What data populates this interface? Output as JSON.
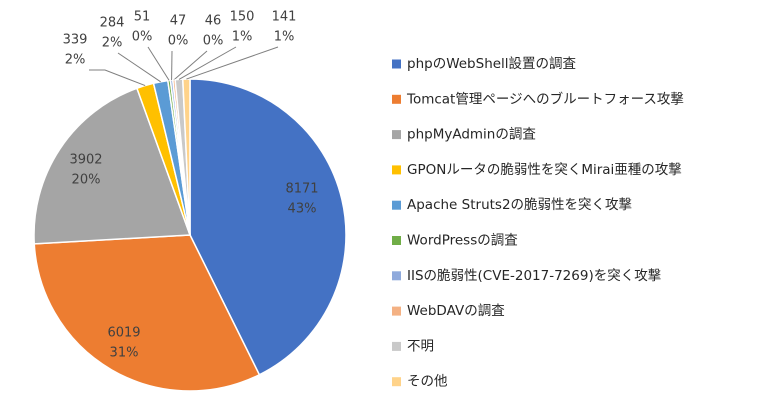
{
  "chart_data": {
    "type": "pie",
    "categories": [
      "phpのWebShell設置の調査",
      "Tomcat管理ページへのブルートフォース攻撃",
      "phpMyAdminの調査",
      "GPONルータの脆弱性を突くMirai亜種の攻撃",
      "Apache Struts2の脆弱性を突く攻撃",
      "WordPressの調査",
      "IISの脆弱性(CVE-2017-7269)を突く攻撃",
      "WebDAVの調査",
      "不明",
      "その他"
    ],
    "values": [
      8171,
      6019,
      3902,
      339,
      284,
      51,
      47,
      46,
      150,
      141
    ],
    "percent_labels": [
      "43%",
      "31%",
      "20%",
      "2%",
      "2%",
      "0%",
      "0%",
      "0%",
      "1%",
      "1%"
    ],
    "colors": [
      "#4472c4",
      "#ed7d31",
      "#a5a5a5",
      "#ffc000",
      "#5b9bd5",
      "#70ad47",
      "#8faadc",
      "#f4b183",
      "#c9c9c9",
      "#ffd38a"
    ],
    "legend": "right"
  }
}
